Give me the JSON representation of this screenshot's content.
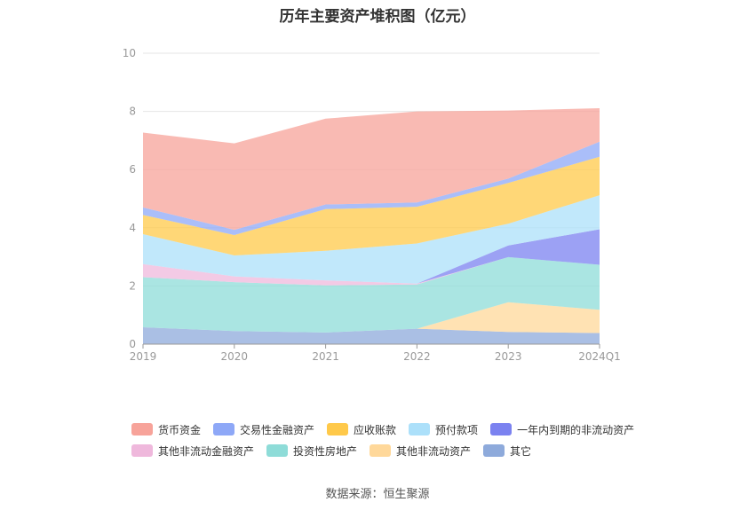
{
  "chart_data": {
    "type": "area",
    "stacked": true,
    "title": "历年主要资产堆积图（亿元）",
    "categories": [
      "2019",
      "2020",
      "2021",
      "2022",
      "2023",
      "2024Q1"
    ],
    "ylim": [
      0,
      10
    ],
    "yticks": [
      0,
      2,
      4,
      6,
      8,
      10
    ],
    "grid": true,
    "legend_position": "bottom",
    "series": [
      {
        "name": "其它",
        "color": "#8eaadb",
        "values": [
          0.58,
          0.45,
          0.4,
          0.53,
          0.42,
          0.38
        ]
      },
      {
        "name": "其他非流动资产",
        "color": "#ffd89a",
        "values": [
          0.0,
          0.0,
          0.0,
          0.0,
          1.02,
          0.8
        ]
      },
      {
        "name": "投资性房地产",
        "color": "#8edcd8",
        "values": [
          1.72,
          1.68,
          1.62,
          1.52,
          1.55,
          1.55
        ]
      },
      {
        "name": "其他非流动金融资产",
        "color": "#efb8dc",
        "values": [
          0.45,
          0.2,
          0.17,
          0.03,
          0.0,
          0.0
        ]
      },
      {
        "name": "一年内到期的非流动资产",
        "color": "#7b82f0",
        "values": [
          0.0,
          0.0,
          0.0,
          0.0,
          0.4,
          1.22
        ]
      },
      {
        "name": "预付款项",
        "color": "#ace0fa",
        "values": [
          1.03,
          0.72,
          1.02,
          1.38,
          0.75,
          1.17
        ]
      },
      {
        "name": "应收账款",
        "color": "#ffc94a",
        "values": [
          0.66,
          0.7,
          1.43,
          1.26,
          1.4,
          1.32
        ]
      },
      {
        "name": "交易性金融资产",
        "color": "#8ea8f7",
        "values": [
          0.26,
          0.18,
          0.16,
          0.15,
          0.15,
          0.52
        ]
      },
      {
        "name": "货币资金",
        "color": "#f7a39a",
        "values": [
          2.57,
          2.97,
          2.95,
          3.13,
          2.34,
          1.15
        ]
      }
    ]
  },
  "legend": {
    "row1": [
      {
        "label": "货币资金",
        "color": "#f7a39a"
      },
      {
        "label": "交易性金融资产",
        "color": "#8ea8f7"
      },
      {
        "label": "应收账款",
        "color": "#ffc94a"
      },
      {
        "label": "预付款项",
        "color": "#ace0fa"
      },
      {
        "label": "一年内到期的非流动资产",
        "color": "#7b82f0"
      }
    ],
    "row2": [
      {
        "label": "其他非流动金融资产",
        "color": "#efb8dc"
      },
      {
        "label": "投资性房地产",
        "color": "#8edcd8"
      },
      {
        "label": "其他非流动资产",
        "color": "#ffd89a"
      },
      {
        "label": "其它",
        "color": "#8eaadb"
      }
    ]
  },
  "source_note": "数据来源：恒生聚源"
}
